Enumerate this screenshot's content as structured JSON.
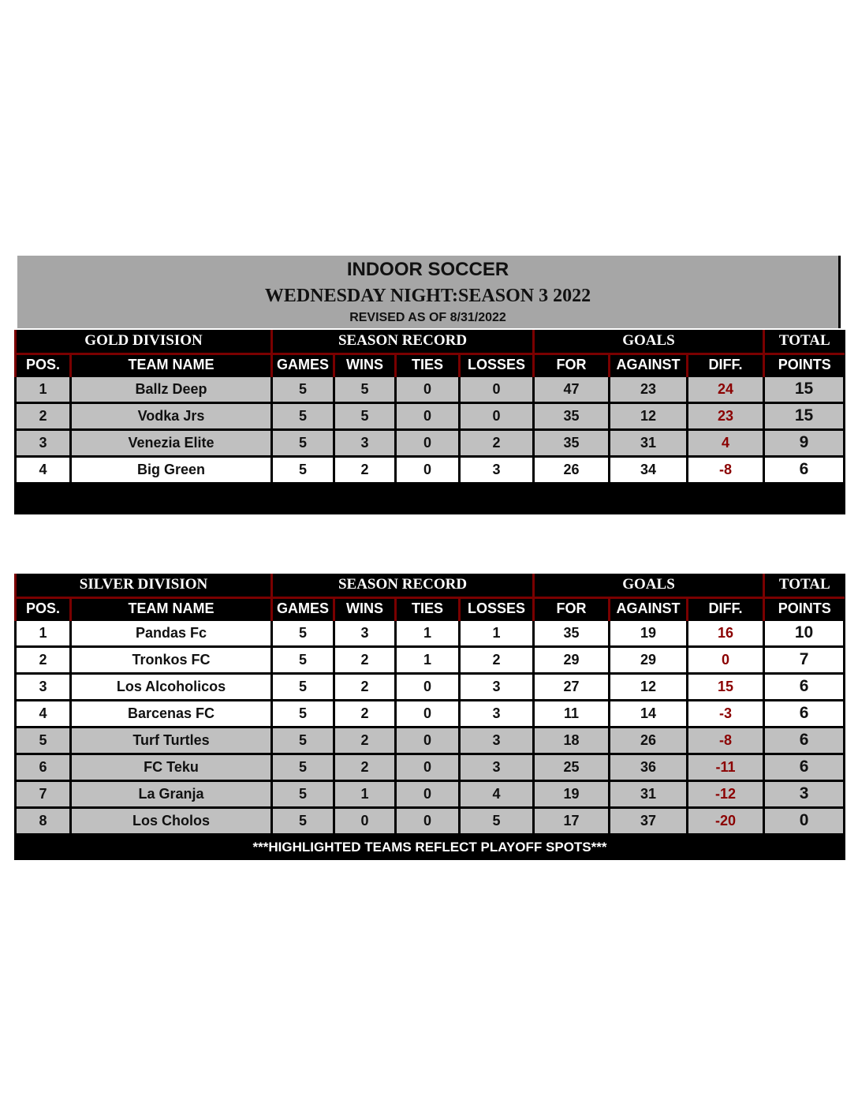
{
  "header": {
    "title": "INDOOR SOCCER",
    "subtitle": "WEDNESDAY NIGHT:SEASON 3 2022",
    "revised": "REVISED AS OF 8/31/2022"
  },
  "group_headers": {
    "season_record": "SEASON RECORD",
    "goals": "GOALS",
    "total": "TOTAL"
  },
  "columns": [
    "POS.",
    "TEAM NAME",
    "GAMES",
    "WINS",
    "TIES",
    "LOSSES",
    "FOR",
    "AGAINST",
    "DIFF.",
    "POINTS"
  ],
  "colors": {
    "gold": "#ffff00",
    "silver": "#a6a6a6",
    "diff": "#8b0000",
    "header_rule": "#7a0000",
    "highlight": "#c0c0c0"
  },
  "gold": {
    "label": "GOLD DIVISION",
    "rows": [
      {
        "pos": "1",
        "team": "Ballz Deep",
        "games": "5",
        "wins": "5",
        "ties": "0",
        "losses": "0",
        "for": "47",
        "against": "23",
        "diff": "24",
        "points": "15",
        "highlighted": true
      },
      {
        "pos": "2",
        "team": "Vodka Jrs",
        "games": "5",
        "wins": "5",
        "ties": "0",
        "losses": "0",
        "for": "35",
        "against": "12",
        "diff": "23",
        "points": "15",
        "highlighted": true
      },
      {
        "pos": "3",
        "team": "Venezia Elite",
        "games": "5",
        "wins": "3",
        "ties": "0",
        "losses": "2",
        "for": "35",
        "against": "31",
        "diff": "4",
        "points": "9",
        "highlighted": true
      },
      {
        "pos": "4",
        "team": "Big Green",
        "games": "5",
        "wins": "2",
        "ties": "0",
        "losses": "3",
        "for": "26",
        "against": "34",
        "diff": "-8",
        "points": "6",
        "highlighted": false
      }
    ]
  },
  "silver": {
    "label": "SILVER DIVISION",
    "rows": [
      {
        "pos": "1",
        "team": "Pandas Fc",
        "games": "5",
        "wins": "3",
        "ties": "1",
        "losses": "1",
        "for": "35",
        "against": "19",
        "diff": "16",
        "points": "10",
        "highlighted": false
      },
      {
        "pos": "2",
        "team": "Tronkos FC",
        "games": "5",
        "wins": "2",
        "ties": "1",
        "losses": "2",
        "for": "29",
        "against": "29",
        "diff": "0",
        "points": "7",
        "highlighted": false
      },
      {
        "pos": "3",
        "team": "Los Alcoholicos",
        "games": "5",
        "wins": "2",
        "ties": "0",
        "losses": "3",
        "for": "27",
        "against": "12",
        "diff": "15",
        "points": "6",
        "highlighted": false
      },
      {
        "pos": "4",
        "team": "Barcenas FC",
        "games": "5",
        "wins": "2",
        "ties": "0",
        "losses": "3",
        "for": "11",
        "against": "14",
        "diff": "-3",
        "points": "6",
        "highlighted": false
      },
      {
        "pos": "5",
        "team": "Turf Turtles",
        "games": "5",
        "wins": "2",
        "ties": "0",
        "losses": "3",
        "for": "18",
        "against": "26",
        "diff": "-8",
        "points": "6",
        "highlighted": true
      },
      {
        "pos": "6",
        "team": "FC Teku",
        "games": "5",
        "wins": "2",
        "ties": "0",
        "losses": "3",
        "for": "25",
        "against": "36",
        "diff": "-11",
        "points": "6",
        "highlighted": true
      },
      {
        "pos": "7",
        "team": "La Granja",
        "games": "5",
        "wins": "1",
        "ties": "0",
        "losses": "4",
        "for": "19",
        "against": "31",
        "diff": "-12",
        "points": "3",
        "highlighted": true
      },
      {
        "pos": "8",
        "team": "Los Cholos",
        "games": "5",
        "wins": "0",
        "ties": "0",
        "losses": "5",
        "for": "17",
        "against": "37",
        "diff": "-20",
        "points": "0",
        "highlighted": true
      }
    ],
    "footer": "***HIGHLIGHTED TEAMS REFLECT PLAYOFF SPOTS***"
  }
}
